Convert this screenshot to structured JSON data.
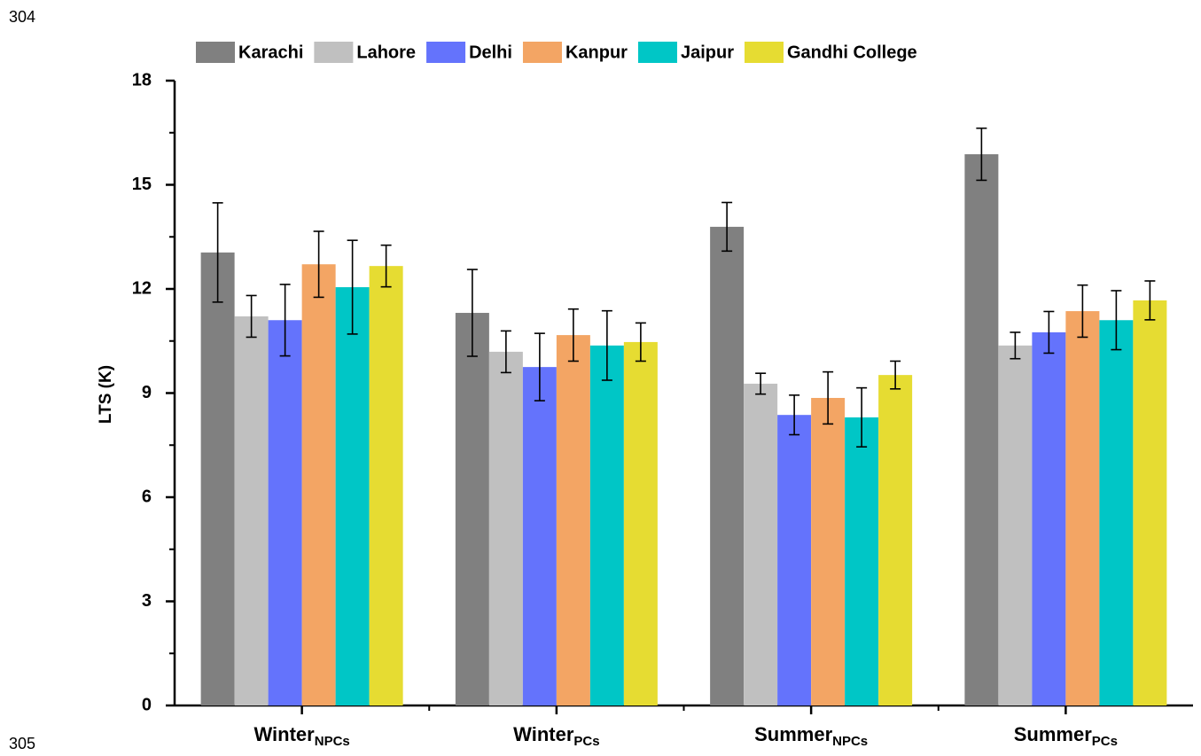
{
  "line_numbers": [
    "304",
    "305"
  ],
  "chart_data": {
    "type": "bar",
    "y_label": "LTS (K)",
    "categories": [
      {
        "text": "Winter",
        "subscript": "NPCs"
      },
      {
        "text": "Winter",
        "subscript": "PCs"
      },
      {
        "text": "Summer",
        "subscript": "NPCs"
      },
      {
        "text": "Summer",
        "subscript": "PCs"
      }
    ],
    "series": [
      {
        "name": "Karachi",
        "color": "#808080",
        "values": [
          13.05,
          11.31,
          13.79,
          15.88
        ],
        "errors": [
          1.43,
          1.25,
          0.7,
          0.75
        ]
      },
      {
        "name": "Lahore",
        "color": "#c0c0c0",
        "values": [
          11.21,
          10.19,
          9.27,
          10.37
        ],
        "errors": [
          0.6,
          0.6,
          0.3,
          0.38
        ]
      },
      {
        "name": "Delhi",
        "color": "#6473fc",
        "values": [
          11.1,
          9.75,
          8.37,
          10.75
        ],
        "errors": [
          1.03,
          0.97,
          0.57,
          0.6
        ]
      },
      {
        "name": "Kanpur",
        "color": "#f3a564",
        "values": [
          12.71,
          10.67,
          8.86,
          11.36
        ],
        "errors": [
          0.95,
          0.75,
          0.75,
          0.75
        ]
      },
      {
        "name": "Jaipur",
        "color": "#00c6c6",
        "values": [
          12.05,
          10.37,
          8.3,
          11.1
        ],
        "errors": [
          1.35,
          1.0,
          0.85,
          0.85
        ]
      },
      {
        "name": "Gandhi College",
        "color": "#e6dc32",
        "values": [
          12.66,
          10.47,
          9.52,
          11.67
        ],
        "errors": [
          0.6,
          0.55,
          0.4,
          0.56
        ]
      }
    ],
    "ylim": [
      0,
      18
    ],
    "yticks": [
      0,
      3,
      6,
      9,
      12,
      15,
      18
    ],
    "yminorticks": [
      1.5,
      4.5,
      7.5,
      10.5,
      13.5,
      16.5
    ]
  }
}
